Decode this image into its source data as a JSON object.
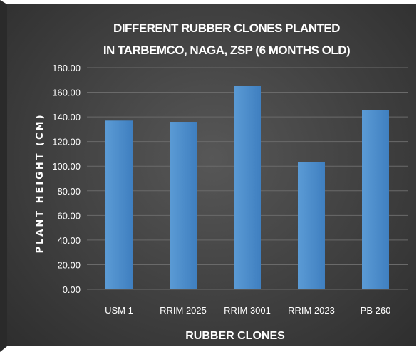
{
  "chart_data": {
    "type": "bar",
    "title_line1": "DIFFERENT RUBBER CLONES PLANTED",
    "title_line2": "IN TARBEMCO, NAGA, ZSP (6 MONTHS OLD)",
    "xlabel": "RUBBER CLONES",
    "ylabel": "PLANT HEIGHT (CM)",
    "categories": [
      "USM 1",
      "RRIM 2025",
      "RRIM 3001",
      "RRIM 2023",
      "PB 260"
    ],
    "values": [
      137,
      136,
      165.5,
      103.5,
      145.5
    ],
    "ylim": [
      0,
      180
    ],
    "yticks": [
      "0.00",
      "20.00",
      "40.00",
      "60.00",
      "80.00",
      "100.00",
      "120.00",
      "140.00",
      "160.00",
      "180.00"
    ],
    "grid": true,
    "colors": {
      "bar": "#5b9bd5",
      "bar_dark": "#3f7fc0",
      "grid": "#6a6a6a",
      "text": "#ffffff"
    }
  }
}
